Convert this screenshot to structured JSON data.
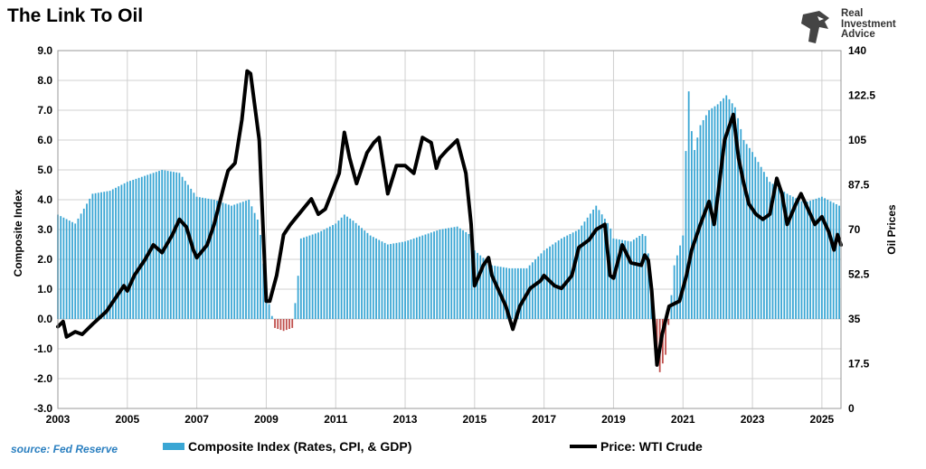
{
  "title": "The Link To Oil",
  "logo": {
    "line1": "Real",
    "line2": "Investment",
    "line3": "Advice",
    "icon": "eagle-head-icon"
  },
  "source": "source: Fed Reserve",
  "colors": {
    "bar": "#3aa6d4",
    "bar_negative": "#c0504d",
    "line": "#000000",
    "grid": "#d0d0d0"
  },
  "chart_data": {
    "type": "bar+line",
    "title": "The Link To Oil",
    "xlabel": "",
    "ylabel": "Composite Index",
    "y2label": "Oil Prices",
    "xlim": [
      2003,
      2025.55
    ],
    "ylim": [
      -3.0,
      9.0
    ],
    "y2lim": [
      0,
      140
    ],
    "x_ticks": [
      "2003",
      "2005",
      "2007",
      "2009",
      "2011",
      "2013",
      "2015",
      "2017",
      "2019",
      "2021",
      "2023",
      "2025"
    ],
    "y_ticks": [
      "-3.0",
      "-2.0",
      "-1.0",
      "0.0",
      "1.0",
      "2.0",
      "3.0",
      "4.0",
      "5.0",
      "6.0",
      "7.0",
      "8.0",
      "9.0"
    ],
    "y2_ticks": [
      "0",
      "17.5",
      "35",
      "52.5",
      "70",
      "87.5",
      "105",
      "122.5",
      "140"
    ],
    "series": [
      {
        "name": "Composite Index (Rates, CPI, & GDP)",
        "type": "bar",
        "points": [
          [
            2003.0,
            3.5
          ],
          [
            2003.5,
            3.2
          ],
          [
            2004.0,
            4.2
          ],
          [
            2004.5,
            4.3
          ],
          [
            2005.0,
            4.6
          ],
          [
            2005.5,
            4.8
          ],
          [
            2006.0,
            5.0
          ],
          [
            2006.5,
            4.9
          ],
          [
            2007.0,
            4.1
          ],
          [
            2007.5,
            4.0
          ],
          [
            2008.0,
            3.8
          ],
          [
            2008.5,
            4.0
          ],
          [
            2008.8,
            3.2
          ],
          [
            2009.0,
            0.9
          ],
          [
            2009.25,
            -0.3
          ],
          [
            2009.5,
            -0.4
          ],
          [
            2009.75,
            -0.3
          ],
          [
            2009.9,
            1.2
          ],
          [
            2010.0,
            2.7
          ],
          [
            2010.5,
            2.9
          ],
          [
            2011.0,
            3.2
          ],
          [
            2011.25,
            3.5
          ],
          [
            2011.5,
            3.3
          ],
          [
            2012.0,
            2.8
          ],
          [
            2012.5,
            2.5
          ],
          [
            2013.0,
            2.6
          ],
          [
            2013.5,
            2.8
          ],
          [
            2014.0,
            3.0
          ],
          [
            2014.5,
            3.1
          ],
          [
            2014.9,
            2.8
          ],
          [
            2015.0,
            2.3
          ],
          [
            2015.5,
            1.8
          ],
          [
            2016.0,
            1.7
          ],
          [
            2016.5,
            1.7
          ],
          [
            2017.0,
            2.3
          ],
          [
            2017.5,
            2.7
          ],
          [
            2018.0,
            3.0
          ],
          [
            2018.5,
            3.8
          ],
          [
            2018.9,
            3.1
          ],
          [
            2019.0,
            2.7
          ],
          [
            2019.5,
            2.6
          ],
          [
            2019.9,
            2.9
          ],
          [
            2020.0,
            2.2
          ],
          [
            2020.3,
            -1.9
          ],
          [
            2020.5,
            -1.2
          ],
          [
            2020.75,
            1.8
          ],
          [
            2021.0,
            2.8
          ],
          [
            2021.15,
            7.9
          ],
          [
            2021.3,
            5.5
          ],
          [
            2021.5,
            6.5
          ],
          [
            2021.75,
            7.0
          ],
          [
            2022.0,
            7.2
          ],
          [
            2022.25,
            7.5
          ],
          [
            2022.5,
            7.1
          ],
          [
            2022.75,
            6.0
          ],
          [
            2023.0,
            5.6
          ],
          [
            2023.5,
            4.6
          ],
          [
            2024.0,
            4.2
          ],
          [
            2024.5,
            3.9
          ],
          [
            2025.0,
            4.1
          ],
          [
            2025.5,
            3.8
          ]
        ]
      },
      {
        "name": "Price: WTI Crude",
        "type": "line",
        "points": [
          [
            2003.0,
            32
          ],
          [
            2003.15,
            34
          ],
          [
            2003.25,
            28
          ],
          [
            2003.5,
            30
          ],
          [
            2003.7,
            29
          ],
          [
            2004.0,
            33
          ],
          [
            2004.4,
            38
          ],
          [
            2004.7,
            44
          ],
          [
            2004.9,
            48
          ],
          [
            2005.0,
            46
          ],
          [
            2005.2,
            52
          ],
          [
            2005.5,
            58
          ],
          [
            2005.75,
            64
          ],
          [
            2006.0,
            61
          ],
          [
            2006.3,
            68
          ],
          [
            2006.5,
            74
          ],
          [
            2006.7,
            71
          ],
          [
            2006.9,
            62
          ],
          [
            2007.0,
            59
          ],
          [
            2007.3,
            64
          ],
          [
            2007.5,
            72
          ],
          [
            2007.8,
            88
          ],
          [
            2007.9,
            93
          ],
          [
            2008.1,
            96
          ],
          [
            2008.3,
            113
          ],
          [
            2008.45,
            132
          ],
          [
            2008.55,
            131
          ],
          [
            2008.8,
            105
          ],
          [
            2009.0,
            42
          ],
          [
            2009.1,
            42
          ],
          [
            2009.3,
            52
          ],
          [
            2009.5,
            68
          ],
          [
            2009.7,
            72
          ],
          [
            2010.0,
            77
          ],
          [
            2010.3,
            82
          ],
          [
            2010.5,
            76
          ],
          [
            2010.7,
            78
          ],
          [
            2010.9,
            85
          ],
          [
            2011.1,
            92
          ],
          [
            2011.25,
            108
          ],
          [
            2011.4,
            98
          ],
          [
            2011.6,
            88
          ],
          [
            2011.9,
            100
          ],
          [
            2012.1,
            104
          ],
          [
            2012.25,
            106
          ],
          [
            2012.5,
            84
          ],
          [
            2012.75,
            95
          ],
          [
            2013.0,
            95
          ],
          [
            2013.25,
            92
          ],
          [
            2013.5,
            106
          ],
          [
            2013.75,
            104
          ],
          [
            2013.9,
            94
          ],
          [
            2014.0,
            98
          ],
          [
            2014.2,
            101
          ],
          [
            2014.5,
            105
          ],
          [
            2014.75,
            92
          ],
          [
            2014.9,
            72
          ],
          [
            2015.0,
            48
          ],
          [
            2015.25,
            56
          ],
          [
            2015.4,
            59
          ],
          [
            2015.5,
            52
          ],
          [
            2015.7,
            46
          ],
          [
            2015.9,
            40
          ],
          [
            2016.1,
            31
          ],
          [
            2016.3,
            40
          ],
          [
            2016.6,
            47
          ],
          [
            2016.9,
            50
          ],
          [
            2017.0,
            52
          ],
          [
            2017.3,
            48
          ],
          [
            2017.5,
            47
          ],
          [
            2017.8,
            52
          ],
          [
            2018.0,
            63
          ],
          [
            2018.3,
            66
          ],
          [
            2018.5,
            70
          ],
          [
            2018.75,
            72
          ],
          [
            2018.9,
            52
          ],
          [
            2019.0,
            51
          ],
          [
            2019.25,
            64
          ],
          [
            2019.5,
            57
          ],
          [
            2019.8,
            56
          ],
          [
            2019.9,
            60
          ],
          [
            2020.0,
            58
          ],
          [
            2020.1,
            46
          ],
          [
            2020.25,
            17
          ],
          [
            2020.4,
            29
          ],
          [
            2020.6,
            40
          ],
          [
            2020.9,
            42
          ],
          [
            2021.1,
            52
          ],
          [
            2021.25,
            62
          ],
          [
            2021.5,
            72
          ],
          [
            2021.75,
            81
          ],
          [
            2021.9,
            72
          ],
          [
            2022.0,
            83
          ],
          [
            2022.2,
            105
          ],
          [
            2022.45,
            115
          ],
          [
            2022.6,
            98
          ],
          [
            2022.75,
            88
          ],
          [
            2022.9,
            80
          ],
          [
            2023.1,
            76
          ],
          [
            2023.3,
            74
          ],
          [
            2023.5,
            76
          ],
          [
            2023.7,
            90
          ],
          [
            2023.85,
            84
          ],
          [
            2024.0,
            72
          ],
          [
            2024.25,
            80
          ],
          [
            2024.4,
            84
          ],
          [
            2024.6,
            78
          ],
          [
            2024.8,
            72
          ],
          [
            2025.0,
            75
          ],
          [
            2025.2,
            69
          ],
          [
            2025.35,
            62
          ],
          [
            2025.45,
            68
          ],
          [
            2025.55,
            64
          ]
        ]
      }
    ],
    "legend": [
      "Composite Index (Rates, CPI, & GDP)",
      "Price: WTI Crude"
    ],
    "legend_position": "bottom"
  }
}
